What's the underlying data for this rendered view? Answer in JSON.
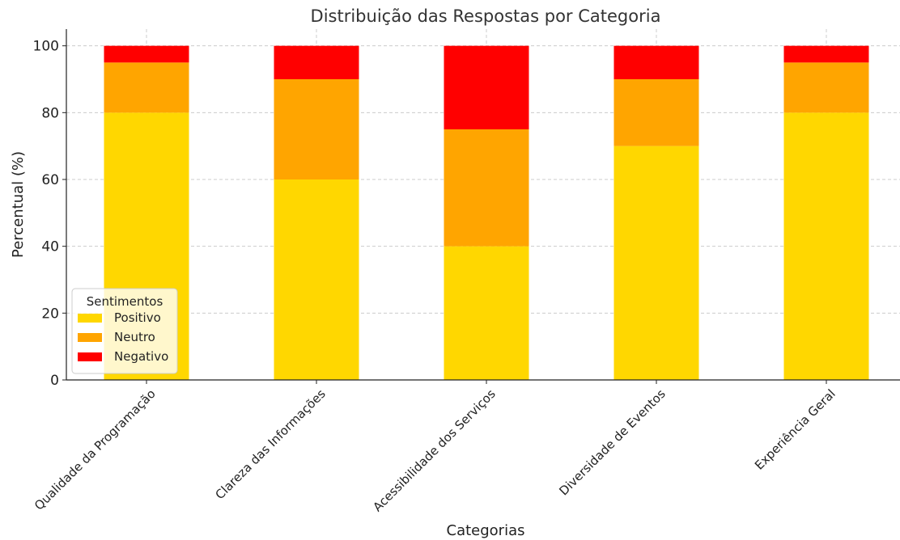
{
  "chart_data": {
    "type": "bar",
    "stacked": true,
    "title": "Distribuição das Respostas por Categoria",
    "xlabel": "Categorias",
    "ylabel": "Percentual (%)",
    "ylim": [
      0,
      105
    ],
    "yticks": [
      0,
      20,
      40,
      60,
      80,
      100
    ],
    "grid": true,
    "categories": [
      "Qualidade da Programação",
      "Clareza das Informações",
      "Acessibilidade dos Serviços",
      "Diversidade de Eventos",
      "Experiência Geral"
    ],
    "series": [
      {
        "name": "Positivo",
        "color": "#FFD700",
        "values": [
          80,
          60,
          40,
          70,
          80
        ]
      },
      {
        "name": "Neutro",
        "color": "#FFA500",
        "values": [
          15,
          30,
          35,
          20,
          15
        ]
      },
      {
        "name": "Negativo",
        "color": "#FF0000",
        "values": [
          5,
          10,
          25,
          10,
          5
        ]
      }
    ],
    "legend": {
      "title": "Sentimentos",
      "placement": "lower-left"
    }
  }
}
